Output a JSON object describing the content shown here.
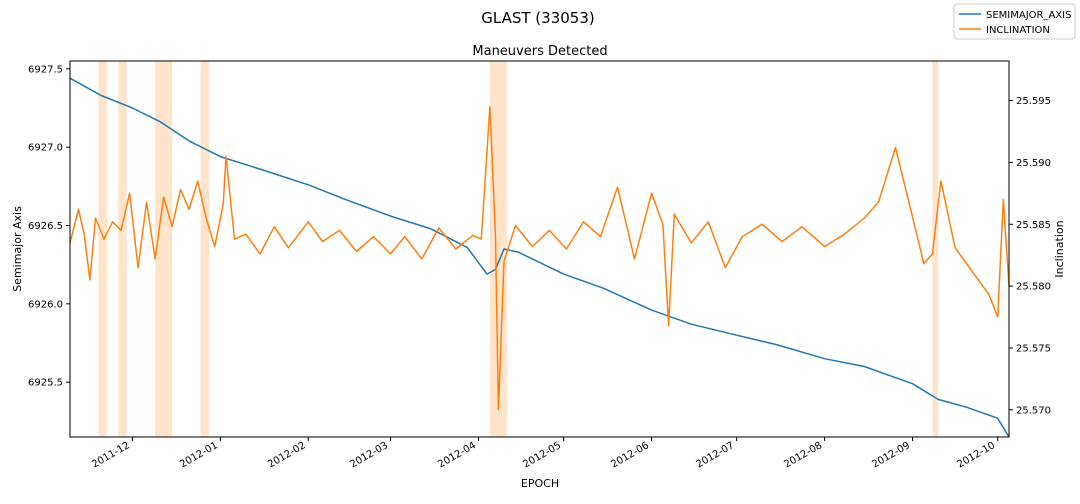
{
  "chart_data": {
    "type": "line",
    "suptitle": "GLAST (33053)",
    "title": "Maneuvers Detected",
    "xlabel": "EPOCH",
    "ylabel_left": "Semimajor Axis",
    "ylabel_right": "Inclination",
    "legend_position": "top-right",
    "grid": false,
    "colors": {
      "semimajor": "#1f77b4",
      "inclination": "#ff7f0e",
      "maneuver_band": "#ffe4cc"
    },
    "x_range": [
      "2011-11-09",
      "2012-10-05"
    ],
    "ylim_left": [
      6925.15,
      6927.55
    ],
    "ylim_right": [
      25.5678,
      25.5982
    ],
    "x_ticks": [
      "2011-12",
      "2012-01",
      "2012-02",
      "2012-03",
      "2012-04",
      "2012-05",
      "2012-06",
      "2012-07",
      "2012-08",
      "2012-09",
      "2012-10"
    ],
    "y_ticks_left": [
      "6925.5",
      "6926.0",
      "6926.5",
      "6927.0",
      "6927.5"
    ],
    "y_ticks_right": [
      "25.570",
      "25.575",
      "25.580",
      "25.585",
      "25.590",
      "25.595"
    ],
    "maneuvers": [
      [
        "2011-11-19",
        "2011-11-22"
      ],
      [
        "2011-11-26",
        "2011-11-29"
      ],
      [
        "2011-12-09",
        "2011-12-15"
      ],
      [
        "2011-12-25",
        "2011-12-28"
      ],
      [
        "2012-04-05",
        "2012-04-11"
      ],
      [
        "2012-09-08",
        "2012-09-10"
      ]
    ],
    "series": [
      {
        "name": "SEMIMAJOR_AXIS",
        "axis": "left",
        "points": [
          [
            "2011-11-09",
            6927.44
          ],
          [
            "2011-11-20",
            6927.33
          ],
          [
            "2011-12-01",
            6927.25
          ],
          [
            "2011-12-11",
            6927.16
          ],
          [
            "2011-12-21",
            6927.04
          ],
          [
            "2012-01-01",
            6926.94
          ],
          [
            "2012-01-15",
            6926.86
          ],
          [
            "2012-02-01",
            6926.76
          ],
          [
            "2012-02-15",
            6926.66
          ],
          [
            "2012-03-01",
            6926.56
          ],
          [
            "2012-03-15",
            6926.48
          ],
          [
            "2012-03-28",
            6926.36
          ],
          [
            "2012-04-04",
            6926.19
          ],
          [
            "2012-04-07",
            6926.22
          ],
          [
            "2012-04-10",
            6926.35
          ],
          [
            "2012-04-15",
            6926.33
          ],
          [
            "2012-05-01",
            6926.19
          ],
          [
            "2012-05-15",
            6926.1
          ],
          [
            "2012-06-01",
            6925.96
          ],
          [
            "2012-06-15",
            6925.87
          ],
          [
            "2012-07-01",
            6925.8
          ],
          [
            "2012-07-15",
            6925.74
          ],
          [
            "2012-08-01",
            6925.65
          ],
          [
            "2012-08-15",
            6925.6
          ],
          [
            "2012-09-01",
            6925.49
          ],
          [
            "2012-09-10",
            6925.39
          ],
          [
            "2012-09-20",
            6925.34
          ],
          [
            "2012-10-01",
            6925.27
          ],
          [
            "2012-10-05",
            6925.15
          ]
        ]
      },
      {
        "name": "INCLINATION",
        "axis": "right",
        "points": [
          [
            "2011-11-09",
            25.5835
          ],
          [
            "2011-11-12",
            25.5862
          ],
          [
            "2011-11-14",
            25.5842
          ],
          [
            "2011-11-16",
            25.5805
          ],
          [
            "2011-11-18",
            25.5855
          ],
          [
            "2011-11-21",
            25.5838
          ],
          [
            "2011-11-24",
            25.5852
          ],
          [
            "2011-11-27",
            25.5845
          ],
          [
            "2011-11-30",
            25.5875
          ],
          [
            "2011-12-03",
            25.5815
          ],
          [
            "2011-12-06",
            25.5868
          ],
          [
            "2011-12-09",
            25.5822
          ],
          [
            "2011-12-12",
            25.5872
          ],
          [
            "2011-12-15",
            25.5848
          ],
          [
            "2011-12-18",
            25.5878
          ],
          [
            "2011-12-21",
            25.5862
          ],
          [
            "2011-12-24",
            25.5885
          ],
          [
            "2011-12-27",
            25.5855
          ],
          [
            "2011-12-30",
            25.5832
          ],
          [
            "2012-01-02",
            25.5866
          ],
          [
            "2012-01-03",
            25.5905
          ],
          [
            "2012-01-06",
            25.5838
          ],
          [
            "2012-01-10",
            25.5842
          ],
          [
            "2012-01-15",
            25.5826
          ],
          [
            "2012-01-20",
            25.5848
          ],
          [
            "2012-01-25",
            25.5831
          ],
          [
            "2012-02-01",
            25.5852
          ],
          [
            "2012-02-06",
            25.5836
          ],
          [
            "2012-02-12",
            25.5845
          ],
          [
            "2012-02-18",
            25.5828
          ],
          [
            "2012-02-24",
            25.584
          ],
          [
            "2012-03-01",
            25.5826
          ],
          [
            "2012-03-06",
            25.584
          ],
          [
            "2012-03-12",
            25.5822
          ],
          [
            "2012-03-18",
            25.5847
          ],
          [
            "2012-03-24",
            25.583
          ],
          [
            "2012-03-30",
            25.5841
          ],
          [
            "2012-04-02",
            25.5838
          ],
          [
            "2012-04-05",
            25.5945
          ],
          [
            "2012-04-07",
            25.584
          ],
          [
            "2012-04-08",
            25.57
          ],
          [
            "2012-04-10",
            25.582
          ],
          [
            "2012-04-14",
            25.5849
          ],
          [
            "2012-04-20",
            25.5832
          ],
          [
            "2012-04-26",
            25.5845
          ],
          [
            "2012-05-02",
            25.583
          ],
          [
            "2012-05-08",
            25.5852
          ],
          [
            "2012-05-14",
            25.584
          ],
          [
            "2012-05-20",
            25.588
          ],
          [
            "2012-05-26",
            25.5822
          ],
          [
            "2012-06-01",
            25.5875
          ],
          [
            "2012-06-05",
            25.585
          ],
          [
            "2012-06-07",
            25.5768
          ],
          [
            "2012-06-09",
            25.5858
          ],
          [
            "2012-06-15",
            25.5835
          ],
          [
            "2012-06-21",
            25.5852
          ],
          [
            "2012-06-27",
            25.5815
          ],
          [
            "2012-07-03",
            25.584
          ],
          [
            "2012-07-10",
            25.585
          ],
          [
            "2012-07-17",
            25.5836
          ],
          [
            "2012-07-24",
            25.5848
          ],
          [
            "2012-08-01",
            25.5832
          ],
          [
            "2012-08-08",
            25.5842
          ],
          [
            "2012-08-15",
            25.5855
          ],
          [
            "2012-08-20",
            25.5868
          ],
          [
            "2012-08-26",
            25.5912
          ],
          [
            "2012-09-01",
            25.5856
          ],
          [
            "2012-09-05",
            25.5818
          ],
          [
            "2012-09-08",
            25.5826
          ],
          [
            "2012-09-11",
            25.5885
          ],
          [
            "2012-09-16",
            25.5831
          ],
          [
            "2012-09-22",
            25.5812
          ],
          [
            "2012-09-28",
            25.5793
          ],
          [
            "2012-10-01",
            25.5775
          ],
          [
            "2012-10-03",
            25.587
          ],
          [
            "2012-10-05",
            25.58
          ]
        ]
      }
    ]
  }
}
